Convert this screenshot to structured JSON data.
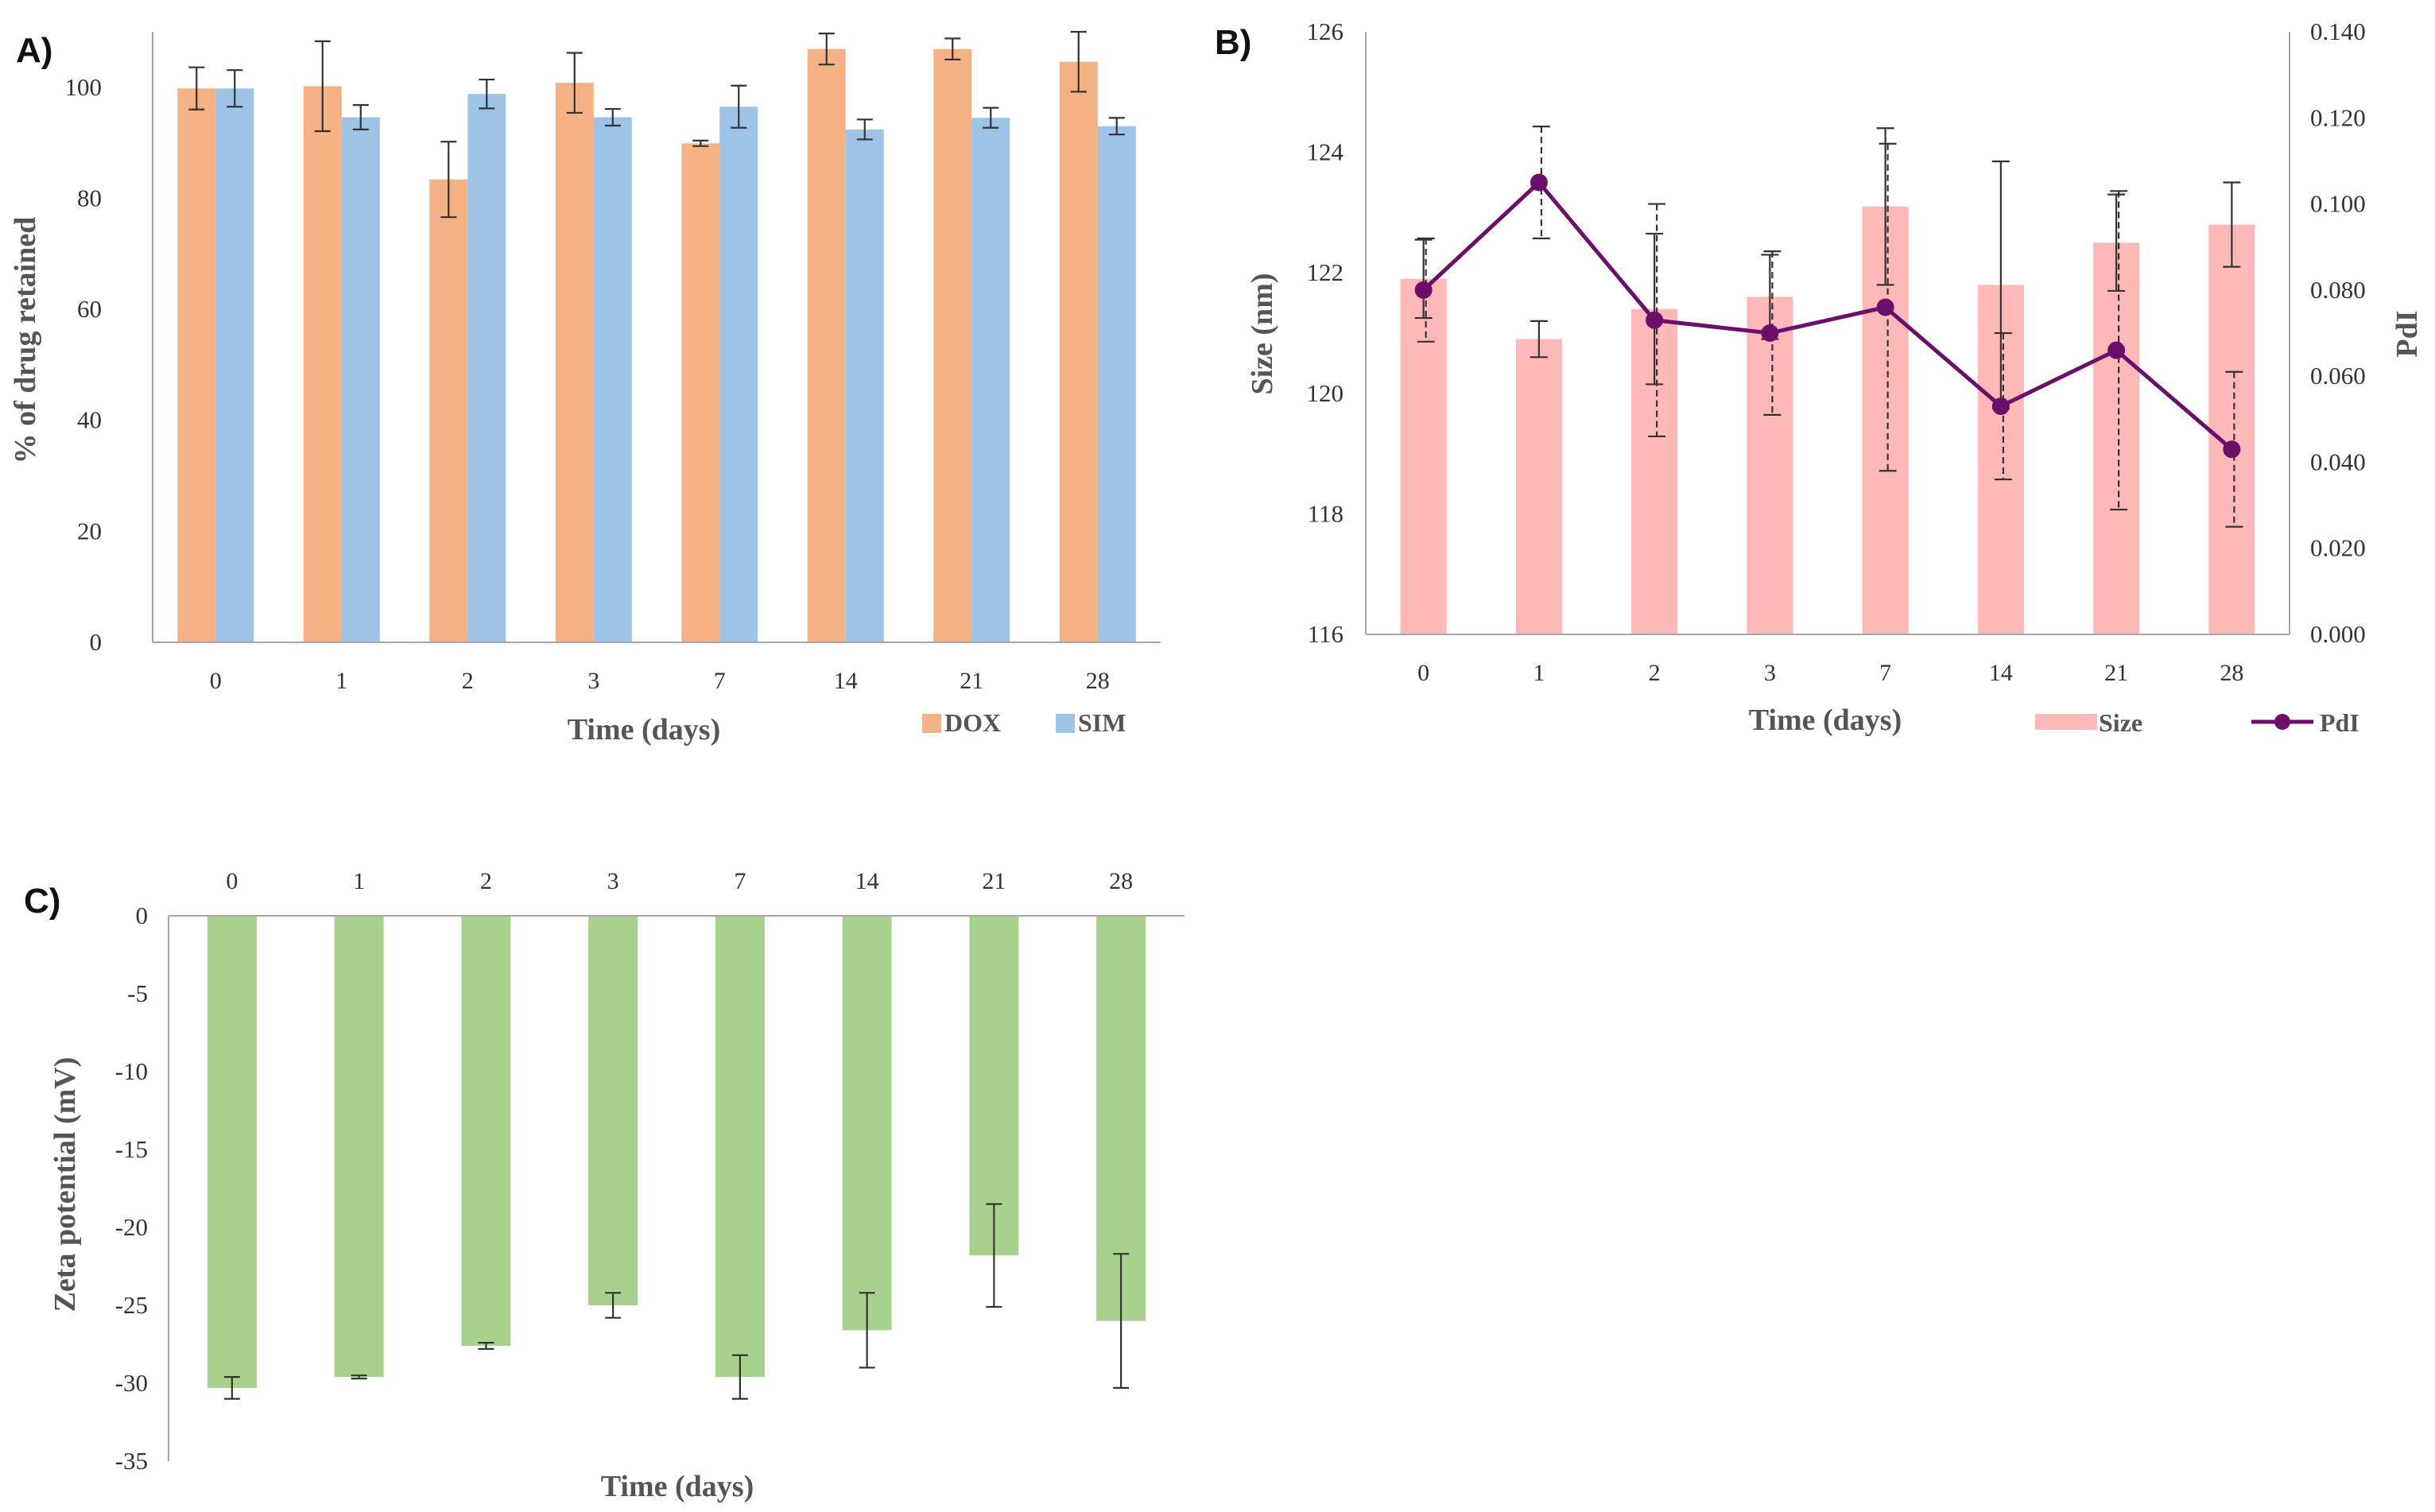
{
  "chart_data": [
    {
      "id": "A",
      "panel_label": "A)",
      "type": "bar",
      "categories": [
        "0",
        "1",
        "2",
        "3",
        "7",
        "14",
        "21",
        "28"
      ],
      "series": [
        {
          "name": "DOX",
          "color": "#f4b183",
          "values": [
            99.8,
            100.2,
            83.4,
            100.8,
            89.9,
            106.9,
            106.9,
            104.6
          ],
          "errors": [
            3.8,
            8.1,
            6.8,
            5.4,
            0.5,
            2.8,
            1.9,
            5.4
          ]
        },
        {
          "name": "SIM",
          "color": "#9dc3e6",
          "values": [
            99.8,
            94.6,
            98.8,
            94.6,
            96.5,
            92.4,
            94.5,
            93.0
          ],
          "errors": [
            3.3,
            2.2,
            2.6,
            1.5,
            3.8,
            1.8,
            1.8,
            1.5
          ]
        }
      ],
      "ylim": [
        0,
        110
      ],
      "yticks": [
        "0",
        "20",
        "40",
        "60",
        "80",
        "100"
      ],
      "xlabel": "Time (days)",
      "ylabel": "% of drug retained",
      "legend": "bottom-right"
    },
    {
      "id": "B",
      "panel_label": "B)",
      "type": "bar+line",
      "categories": [
        "0",
        "1",
        "2",
        "3",
        "7",
        "14",
        "21",
        "28"
      ],
      "size": {
        "name": "Size",
        "color": "#ffb8b8",
        "values": [
          121.9,
          120.9,
          121.4,
          121.6,
          123.1,
          121.8,
          122.5,
          122.8
        ],
        "errors": [
          0.65,
          0.3,
          1.25,
          0.7,
          1.3,
          2.05,
          0.8,
          0.7
        ]
      },
      "pdi": {
        "name": "PdI",
        "color": "#6b0f6b",
        "values": [
          0.08,
          0.105,
          0.073,
          0.07,
          0.076,
          0.053,
          0.066,
          0.043
        ],
        "errors": [
          0.012,
          0.013,
          0.027,
          0.019,
          0.038,
          0.017,
          0.037,
          0.018
        ]
      },
      "ylim_left": [
        116,
        126
      ],
      "yticks_left": [
        "116",
        "118",
        "120",
        "122",
        "124",
        "126"
      ],
      "ylim_right": [
        0,
        0.14
      ],
      "yticks_right": [
        "0.000",
        "0.020",
        "0.040",
        "0.060",
        "0.080",
        "0.100",
        "0.120",
        "0.140"
      ],
      "xlabel": "Time (days)",
      "ylabel_left": "Size (nm)",
      "ylabel_right": "PdI",
      "legend": "bottom-right"
    },
    {
      "id": "C",
      "panel_label": "C)",
      "type": "bar",
      "categories": [
        "0",
        "1",
        "2",
        "3",
        "7",
        "14",
        "21",
        "28"
      ],
      "series": [
        {
          "name": "Zeta potential",
          "color": "#a9d18e",
          "values": [
            -30.3,
            -29.6,
            -27.6,
            -25.0,
            -29.6,
            -26.6,
            -21.8,
            -26.0
          ],
          "errors": [
            0.7,
            0.1,
            0.2,
            0.8,
            1.4,
            2.4,
            3.3,
            4.3
          ]
        }
      ],
      "ylim": [
        -35,
        0
      ],
      "yticks": [
        "0",
        "-5",
        "-10",
        "-15",
        "-20",
        "-25",
        "-30",
        "-35"
      ],
      "xlabel": "Time (days)",
      "ylabel": "Zeta potential (mV)",
      "xaxis_position": "top"
    }
  ]
}
